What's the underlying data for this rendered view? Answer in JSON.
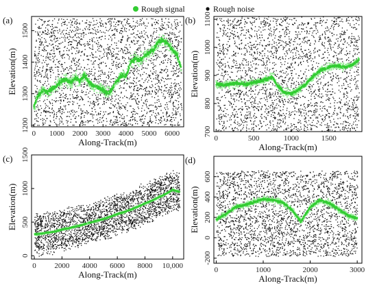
{
  "legend": {
    "signal_label": "Rough signal",
    "noise_label": "Rough noise",
    "signal_color": "#33cc33",
    "signal_light_color": "#99ee99",
    "noise_color": "#111111"
  },
  "chart_data": [
    {
      "panel": "(a)",
      "type": "scatter",
      "xlabel": "Along-Track(m)",
      "ylabel": "Elevation(m)",
      "xlim": [
        -100,
        6500
      ],
      "ylim": [
        1195,
        1545
      ],
      "xticks": [
        0,
        1000,
        2000,
        3000,
        4000,
        5000,
        6000
      ],
      "xtick_labels": [
        "0",
        "1000",
        "2000",
        "3000",
        "4000",
        "5000",
        "6000"
      ],
      "yticks": [
        1200,
        1300,
        1400,
        1500
      ],
      "ytick_labels": [
        "1200",
        "1300",
        "1400",
        "1500"
      ],
      "noise_band": [
        1200,
        1540
      ],
      "signal_spread": 18,
      "series": [
        {
          "name": "Rough signal",
          "x": [
            0,
            200,
            400,
            600,
            800,
            1000,
            1200,
            1400,
            1600,
            1800,
            2000,
            2200,
            2400,
            2600,
            2800,
            3000,
            3200,
            3400,
            3600,
            3800,
            4000,
            4200,
            4400,
            4600,
            4800,
            5000,
            5200,
            5400,
            5600,
            5800,
            6000,
            6200,
            6400
          ],
          "y": [
            1260,
            1295,
            1310,
            1305,
            1315,
            1325,
            1340,
            1345,
            1335,
            1350,
            1340,
            1360,
            1335,
            1325,
            1320,
            1310,
            1300,
            1315,
            1340,
            1360,
            1355,
            1400,
            1410,
            1405,
            1420,
            1430,
            1440,
            1465,
            1470,
            1460,
            1440,
            1425,
            1380
          ]
        }
      ]
    },
    {
      "panel": "(b)",
      "type": "scatter",
      "xlabel": "Along-Track(m)",
      "ylabel": "Elevation(m)",
      "xlim": [
        -30,
        1940
      ],
      "ylim": [
        700,
        1110
      ],
      "xticks": [
        0,
        500,
        1000,
        1500
      ],
      "xtick_labels": [
        "0",
        "500",
        "1000",
        "1500"
      ],
      "yticks": [
        700,
        800,
        900,
        1000,
        1100
      ],
      "ytick_labels": [
        "700",
        "800",
        "900",
        "1000",
        "1100"
      ],
      "noise_band": [
        700,
        1110
      ],
      "signal_spread": 14,
      "series": [
        {
          "name": "Rough signal",
          "x": [
            0,
            100,
            200,
            300,
            400,
            500,
            600,
            700,
            750,
            800,
            900,
            1000,
            1100,
            1200,
            1300,
            1400,
            1500,
            1600,
            1700,
            1800,
            1900
          ],
          "y": [
            870,
            865,
            870,
            872,
            868,
            875,
            880,
            890,
            895,
            870,
            840,
            835,
            850,
            870,
            900,
            920,
            930,
            935,
            930,
            935,
            955
          ]
        }
      ]
    },
    {
      "panel": "(c)",
      "type": "scatter",
      "xlabel": "Along-Track(m)",
      "ylabel": "Elevation(m)",
      "xlim": [
        -200,
        10800
      ],
      "ylim": [
        -50,
        1500
      ],
      "xticks": [
        0,
        2000,
        4000,
        6000,
        8000,
        10000
      ],
      "xtick_labels": [
        "0",
        "2000",
        "4000",
        "6000",
        "8000",
        "10,000"
      ],
      "yticks": [
        0,
        500,
        1000,
        1500
      ],
      "ytick_labels": [
        "0",
        "500",
        "1000",
        "1500"
      ],
      "noise_band_halfwidth": 280,
      "signal_spread": 20,
      "series": [
        {
          "name": "Rough signal",
          "x": [
            0,
            500,
            1000,
            1500,
            2000,
            2500,
            3000,
            3500,
            4000,
            4500,
            5000,
            5500,
            6000,
            6500,
            7000,
            7500,
            8000,
            8500,
            9000,
            9500,
            10000,
            10500
          ],
          "y": [
            320,
            330,
            345,
            360,
            390,
            410,
            435,
            460,
            490,
            520,
            545,
            580,
            620,
            650,
            690,
            730,
            780,
            820,
            870,
            920,
            980,
            950
          ]
        }
      ]
    },
    {
      "panel": "(d)",
      "type": "scatter",
      "xlabel": "Along-Track(m)",
      "ylabel": "Elevation(m)",
      "xlim": [
        -50,
        3100
      ],
      "ylim": [
        -250,
        800
      ],
      "xticks": [
        0,
        1000,
        2000,
        3000
      ],
      "xtick_labels": [
        "0",
        "1000",
        "2000",
        "3000"
      ],
      "yticks": [
        -200,
        0,
        200,
        400,
        600
      ],
      "ytick_labels": [
        "-200",
        "0",
        "200",
        "400",
        "600"
      ],
      "noise_band": [
        -180,
        660
      ],
      "signal_spread": 30,
      "series": [
        {
          "name": "Rough signal",
          "x": [
            0,
            200,
            400,
            600,
            800,
            1000,
            1200,
            1400,
            1600,
            1700,
            1800,
            2000,
            2200,
            2400,
            2600,
            2800,
            3000
          ],
          "y": [
            180,
            230,
            300,
            320,
            350,
            380,
            370,
            350,
            280,
            220,
            160,
            300,
            370,
            340,
            280,
            220,
            190
          ]
        }
      ]
    }
  ]
}
